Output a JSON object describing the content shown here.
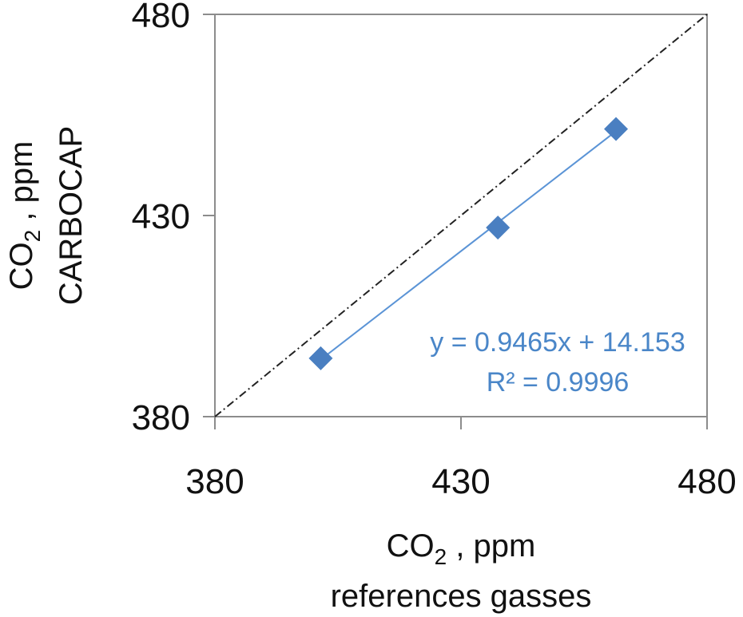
{
  "chart_data": {
    "type": "scatter",
    "title": "",
    "x_axis": {
      "label_line1_main": "CO",
      "label_line1_sub": "2",
      "label_line1_rest": " , ppm",
      "label_line2": "references gasses",
      "range": [
        380,
        480
      ],
      "ticks": [
        "380",
        "430",
        "480"
      ]
    },
    "y_axis": {
      "label_line1_main": "CO",
      "label_line1_sub": "2",
      "label_line1_rest": " , ppm",
      "label_line2": "CARBOCAP",
      "range": [
        380,
        480
      ],
      "ticks": [
        "380",
        "430",
        "480"
      ]
    },
    "grid": false,
    "series": [
      {
        "values": [
          {
            "x": 401.5,
            "y": 394.5
          },
          {
            "x": 437.5,
            "y": 427.0
          },
          {
            "x": 461.5,
            "y": 451.5
          }
        ],
        "marker": "diamond",
        "color": "#4a7fc1"
      }
    ],
    "trendline": {
      "slope": 0.9465,
      "intercept": 14.153,
      "x_range": [
        401.5,
        461.5
      ],
      "color": "#5b94d6"
    },
    "reference_line": {
      "description": "1:1 dash-dot line",
      "color": "#222222"
    },
    "annotations": {
      "equation": "y = 0.9465x + 14.153",
      "r_squared": "R² = 0.9996",
      "color": "#4a86c8"
    }
  }
}
